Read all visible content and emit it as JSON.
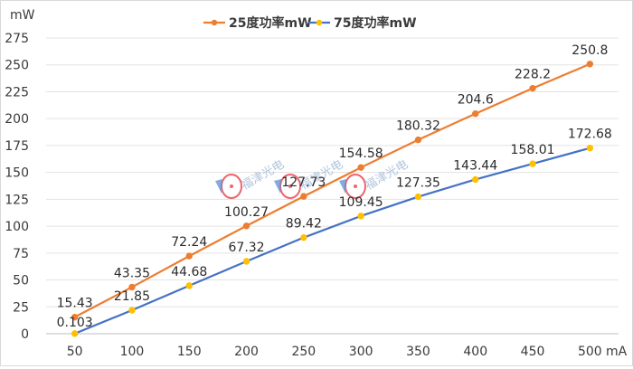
{
  "chart_data": {
    "type": "line",
    "ylabel": "mW",
    "xlabel": "mA",
    "x": [
      50,
      100,
      150,
      200,
      250,
      300,
      350,
      400,
      450,
      500
    ],
    "ylim": [
      0,
      275
    ],
    "yticks": [
      0,
      25,
      50,
      75,
      100,
      125,
      150,
      175,
      200,
      225,
      250,
      275
    ],
    "grid": true,
    "legend_position": "top",
    "series": [
      {
        "name": "25度功率mW",
        "color": "#ED7D31",
        "values": [
          15.43,
          43.35,
          72.24,
          100.27,
          127.73,
          154.58,
          180.32,
          204.6,
          228.2,
          250.8
        ],
        "labels": [
          "15.43",
          "43.35",
          "72.24",
          "100.27",
          "127.73",
          "154.58",
          "180.32",
          "204.6",
          "228.2",
          "250.8"
        ]
      },
      {
        "name": "75度功率mW",
        "color": "#4472C4",
        "marker_color": "#FFC000",
        "values": [
          0.103,
          21.85,
          44.68,
          67.32,
          89.42,
          109.45,
          127.35,
          143.44,
          158.01,
          172.68
        ],
        "labels": [
          "0.103",
          "21.85",
          "44.68",
          "67.32",
          "89.42",
          "109.45",
          "127.35",
          "143.44",
          "158.01",
          "172.68"
        ]
      }
    ]
  },
  "watermark": {
    "text": "福津光电",
    "icon": "logo-icon",
    "accent": "#E8303A"
  }
}
